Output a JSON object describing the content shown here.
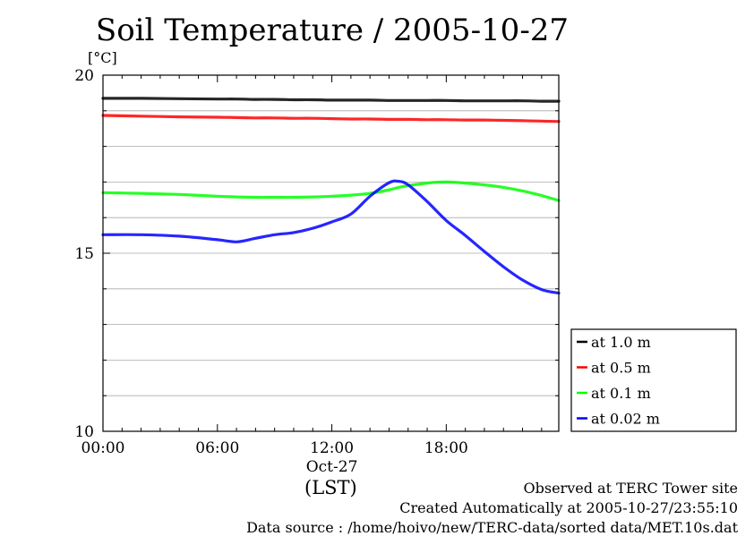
{
  "chart_data": {
    "type": "line",
    "title": "Soil Temperature / 2005-10-27",
    "ylabel": "[°C]",
    "xlabel": "(LST)",
    "date_label": "Oct-27",
    "ylim": [
      10,
      20
    ],
    "xlim": [
      0,
      23.9
    ],
    "x_unit": "hour of day (LST)",
    "yticks": [
      "10",
      "15",
      "20"
    ],
    "xticks": [
      {
        "x": 0,
        "label": "00:00"
      },
      {
        "x": 6,
        "label": "06:00"
      },
      {
        "x": 12,
        "label": "12:00"
      },
      {
        "x": 18,
        "label": "18:00"
      }
    ],
    "grid": true,
    "legend": "right",
    "x": [
      0,
      2,
      4,
      6,
      7,
      8,
      9,
      10,
      11,
      12,
      13,
      14,
      15,
      15.5,
      16,
      17,
      18,
      19,
      20,
      21,
      22,
      23,
      23.9
    ],
    "series": [
      {
        "name": "at 1.0 m",
        "color": "#000000",
        "values": [
          19.35,
          19.35,
          19.34,
          19.33,
          19.33,
          19.32,
          19.32,
          19.31,
          19.31,
          19.3,
          19.3,
          19.3,
          19.29,
          19.29,
          19.29,
          19.29,
          19.29,
          19.28,
          19.28,
          19.28,
          19.28,
          19.27,
          19.27
        ]
      },
      {
        "name": "at 0.5 m",
        "color": "#ff0000",
        "values": [
          18.87,
          18.85,
          18.83,
          18.82,
          18.81,
          18.8,
          18.8,
          18.79,
          18.79,
          18.78,
          18.77,
          18.77,
          18.76,
          18.76,
          18.76,
          18.75,
          18.75,
          18.74,
          18.74,
          18.73,
          18.72,
          18.71,
          18.7
        ]
      },
      {
        "name": "at 0.1 m",
        "color": "#00ff00",
        "values": [
          16.7,
          16.68,
          16.65,
          16.6,
          16.58,
          16.57,
          16.57,
          16.57,
          16.58,
          16.6,
          16.63,
          16.68,
          16.78,
          16.85,
          16.9,
          16.97,
          17.0,
          16.97,
          16.92,
          16.85,
          16.75,
          16.62,
          16.48
        ]
      },
      {
        "name": "at 0.02 m",
        "color": "#0000ff",
        "values": [
          15.52,
          15.52,
          15.48,
          15.38,
          15.32,
          15.42,
          15.52,
          15.58,
          15.7,
          15.88,
          16.1,
          16.6,
          16.98,
          17.02,
          16.92,
          16.45,
          15.92,
          15.5,
          15.05,
          14.62,
          14.25,
          13.98,
          13.88
        ]
      }
    ]
  },
  "footer": {
    "site": "Observed at TERC Tower site",
    "created": "Created Automatically at 2005-10-27/23:55:10",
    "source": "Data source : /home/hoivo/new/TERC-data/sorted  data/MET.10s.dat"
  }
}
